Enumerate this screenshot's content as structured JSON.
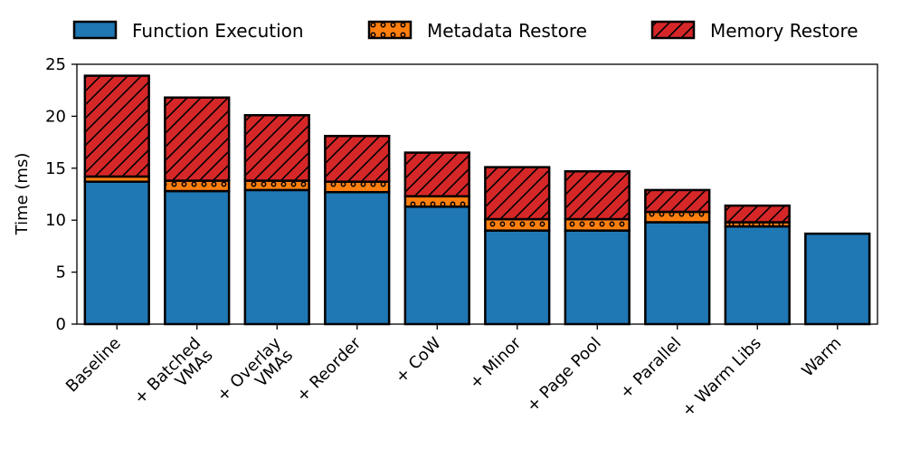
{
  "chart_data": {
    "type": "bar",
    "stacked": true,
    "ylabel": "Time (ms)",
    "ylim": [
      0,
      25
    ],
    "yticks": [
      0,
      5,
      10,
      15,
      20,
      25
    ],
    "grid": false,
    "legend_position": "top",
    "categories": [
      [
        "Baseline"
      ],
      [
        "+ Batched",
        "VMAs"
      ],
      [
        "+ Overlay",
        "VMAs"
      ],
      [
        "+ Reorder"
      ],
      [
        "+ CoW"
      ],
      [
        "+ Minor"
      ],
      [
        "+ Page Pool"
      ],
      [
        "+ Parallel"
      ],
      [
        "+ Warm Libs"
      ],
      [
        "Warm"
      ]
    ],
    "series": [
      {
        "name": "Function Execution",
        "color": "#1f77b4",
        "hatch": "none",
        "values": [
          13.7,
          12.8,
          12.9,
          12.7,
          11.3,
          9.0,
          9.0,
          9.8,
          9.4,
          8.7
        ]
      },
      {
        "name": "Metadata Restore",
        "color": "#ff7f0e",
        "hatch": "dots",
        "values": [
          0.5,
          1.0,
          0.9,
          1.0,
          1.0,
          1.1,
          1.1,
          1.0,
          0.4,
          0.0
        ]
      },
      {
        "name": "Memory Restore",
        "color": "#d62728",
        "hatch": "diagonal",
        "values": [
          9.7,
          8.0,
          6.3,
          4.4,
          4.2,
          5.0,
          4.6,
          2.1,
          1.6,
          0.0
        ]
      }
    ]
  }
}
